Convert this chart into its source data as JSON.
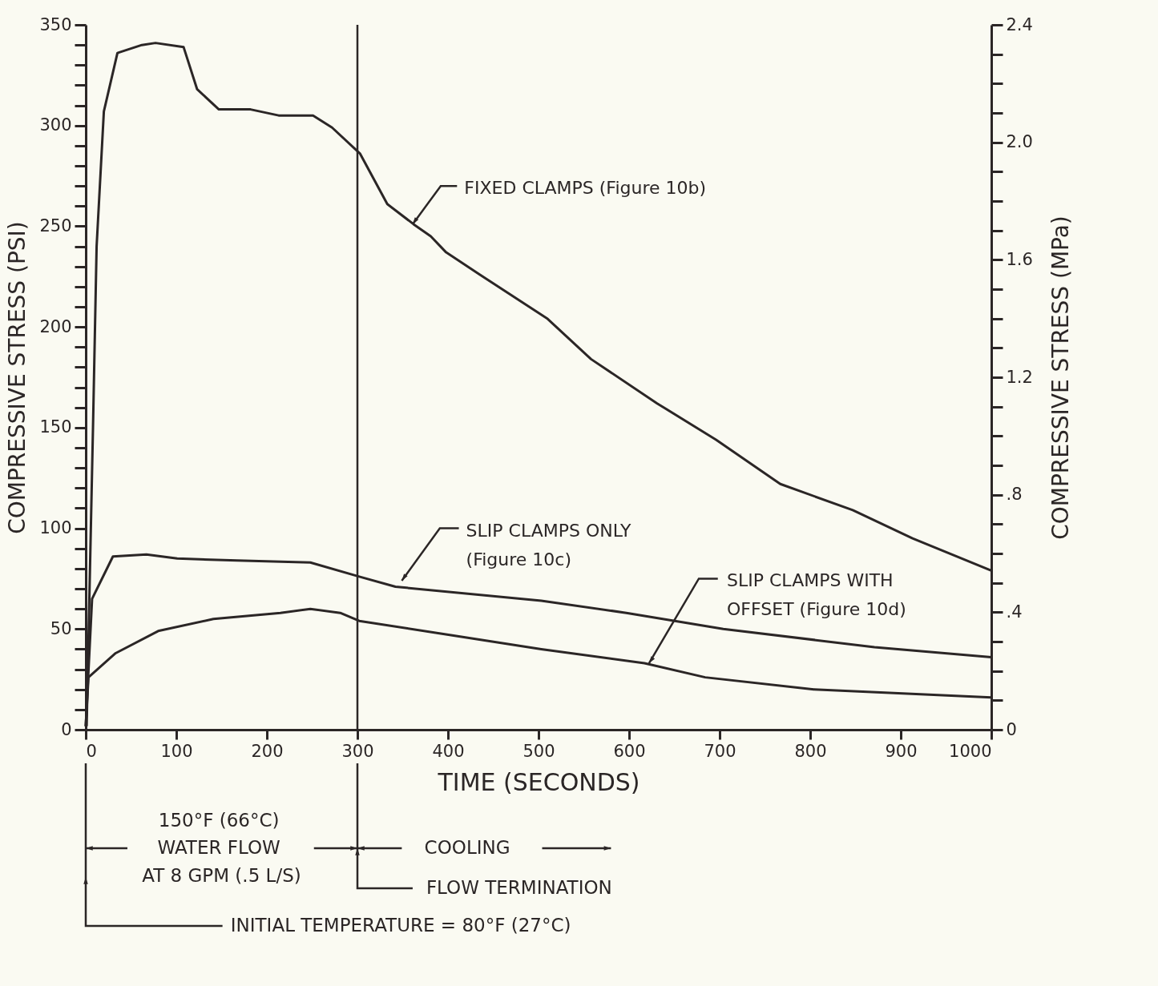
{
  "chart_data": {
    "type": "line",
    "xlabel": "TIME (SECONDS)",
    "ylabel": "COMPRESSIVE STRESS (PSI)",
    "y2label": "COMPRESSIVE STRESS (MPa)",
    "xlim": [
      0,
      1000
    ],
    "xticks": [
      0,
      100,
      200,
      300,
      400,
      500,
      600,
      700,
      800,
      900,
      1000
    ],
    "ylim": [
      0,
      350
    ],
    "yticks": [
      0,
      {
        "value": 10,
        "label": null
      },
      {
        "value": 20,
        "label": null
      },
      {
        "value": 30,
        "label": null
      },
      {
        "value": 40,
        "label": null
      },
      50,
      {
        "value": 60,
        "label": null
      },
      {
        "value": 70,
        "label": null
      },
      {
        "value": 80,
        "label": null
      },
      {
        "value": 90,
        "label": null
      },
      100,
      {
        "value": 110,
        "label": null
      },
      {
        "value": 120,
        "label": null
      },
      {
        "value": 130,
        "label": null
      },
      {
        "value": 140,
        "label": null
      },
      150,
      {
        "value": 160,
        "label": null
      },
      {
        "value": 170,
        "label": null
      },
      {
        "value": 180,
        "label": null
      },
      {
        "value": 190,
        "label": null
      },
      200,
      {
        "value": 210,
        "label": null
      },
      {
        "value": 220,
        "label": null
      },
      {
        "value": 230,
        "label": null
      },
      {
        "value": 240,
        "label": null
      },
      250,
      {
        "value": 260,
        "label": null
      },
      {
        "value": 270,
        "label": null
      },
      {
        "value": 280,
        "label": null
      },
      {
        "value": 290,
        "label": null
      },
      300,
      {
        "value": 310,
        "label": null
      },
      {
        "value": 320,
        "label": null
      },
      {
        "value": 330,
        "label": null
      },
      {
        "value": 340,
        "label": null
      },
      350
    ],
    "y2lim": [
      0,
      2.4
    ],
    "y2ticks": [
      0,
      {
        "value": 0.1,
        "label": null
      },
      {
        "value": 0.2,
        "label": null
      },
      {
        "value": 0.3,
        "label": null
      },
      {
        "value": 0.4,
        "label": ".4"
      },
      {
        "value": 0.5,
        "label": null
      },
      {
        "value": 0.6,
        "label": null
      },
      {
        "value": 0.7,
        "label": null
      },
      {
        "value": 0.8,
        "label": ".8"
      },
      {
        "value": 0.9,
        "label": null
      },
      {
        "value": 1.0,
        "label": null
      },
      {
        "value": 1.1,
        "label": null
      },
      1.2,
      {
        "value": 1.3,
        "label": null
      },
      {
        "value": 1.4,
        "label": null
      },
      {
        "value": 1.5,
        "label": null
      },
      1.6,
      {
        "value": 1.7,
        "label": null
      },
      {
        "value": 1.8,
        "label": null
      },
      {
        "value": 1.9,
        "label": null
      },
      {
        "value": 2.0,
        "label": "2.0"
      },
      {
        "value": 2.1,
        "label": null
      },
      {
        "value": 2.2,
        "label": null
      },
      {
        "value": 2.3,
        "label": null
      },
      2.4
    ],
    "series": [
      {
        "name": "FIXED CLAMPS (Figure 10b)",
        "color": "#2b2626",
        "x": [
          1,
          8,
          12,
          20,
          35,
          62,
          77,
          108,
          123,
          147,
          182,
          213,
          251,
          272,
          303,
          333,
          362,
          381,
          398,
          435,
          510,
          558,
          631,
          696,
          767,
          847,
          913,
          1000
        ],
        "values": [
          2,
          150,
          240,
          307,
          336,
          340,
          341,
          339,
          318,
          308,
          308,
          305,
          305,
          299,
          286,
          261,
          251,
          245,
          237,
          226,
          204,
          184,
          162,
          144,
          122,
          109,
          95,
          79
        ]
      },
      {
        "name": "SLIP CLAMPS ONLY (Figure 10c)",
        "color": "#2b2626",
        "x": [
          0,
          7,
          30,
          67,
          101,
          167,
          248,
          302,
          342,
          503,
          597,
          704,
          871,
          1000
        ],
        "values": [
          2,
          65,
          86,
          87,
          85,
          84,
          83,
          76,
          71,
          64,
          58,
          50,
          41,
          36
        ]
      },
      {
        "name": "SLIP CLAMPS WITH OFFSET (Figure 10d)",
        "color": "#2b2626",
        "x": [
          0,
          3,
          33,
          80,
          141,
          215,
          248,
          281,
          302,
          402,
          503,
          617,
          684,
          804,
          1000
        ],
        "values": [
          2,
          26,
          38,
          49,
          55,
          58,
          60,
          58,
          54,
          47,
          40,
          33,
          26,
          20,
          16
        ]
      }
    ],
    "ref_lines": [
      {
        "axis": "x",
        "value": 300
      }
    ],
    "annotations": [
      "150°F (66°C)",
      "WATER FLOW",
      "AT 8 GPM (.5 L/S)",
      "COOLING",
      "FLOW TERMINATION",
      "INITIAL TEMPERATURE = 80°F (27°C)"
    ],
    "grid": false,
    "legend": false,
    "line_style": "solid"
  }
}
